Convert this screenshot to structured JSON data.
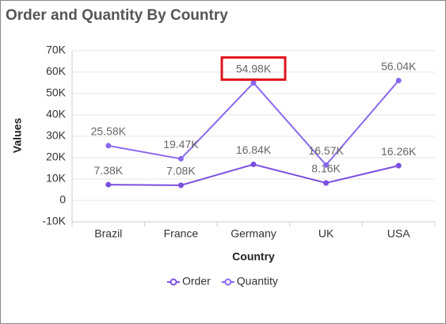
{
  "chart_data": {
    "type": "line",
    "title": "Order and Quantity By Country",
    "x_label": "Country",
    "y_label": "Values",
    "categories": [
      "Brazil",
      "France",
      "Germany",
      "UK",
      "USA"
    ],
    "series": [
      {
        "name": "Order",
        "color": "#7b4fe0",
        "values": [
          7380,
          7080,
          16840,
          8160,
          16260
        ],
        "value_labels": [
          "7.38K",
          "7.08K",
          "16.84K",
          "8.16K",
          "16.26K"
        ]
      },
      {
        "name": "Quantity",
        "color": "#8a67ee",
        "values": [
          25580,
          19470,
          54980,
          16570,
          56040
        ],
        "value_labels": [
          "25.58K",
          "19.47K",
          "54.98K",
          "16.57K",
          "56.04K"
        ]
      }
    ],
    "ylim": [
      -10000,
      70000
    ],
    "yticks": [
      {
        "value": -10000,
        "label": "-10K"
      },
      0,
      {
        "value": 10000,
        "label": "10K"
      },
      {
        "value": 20000,
        "label": "20K"
      },
      {
        "value": 30000,
        "label": "30K"
      },
      {
        "value": 40000,
        "label": "40K"
      },
      {
        "value": 50000,
        "label": "50K"
      },
      {
        "value": 60000,
        "label": "60K"
      },
      {
        "value": 70000,
        "label": "70K"
      }
    ],
    "grid": true
  }
}
